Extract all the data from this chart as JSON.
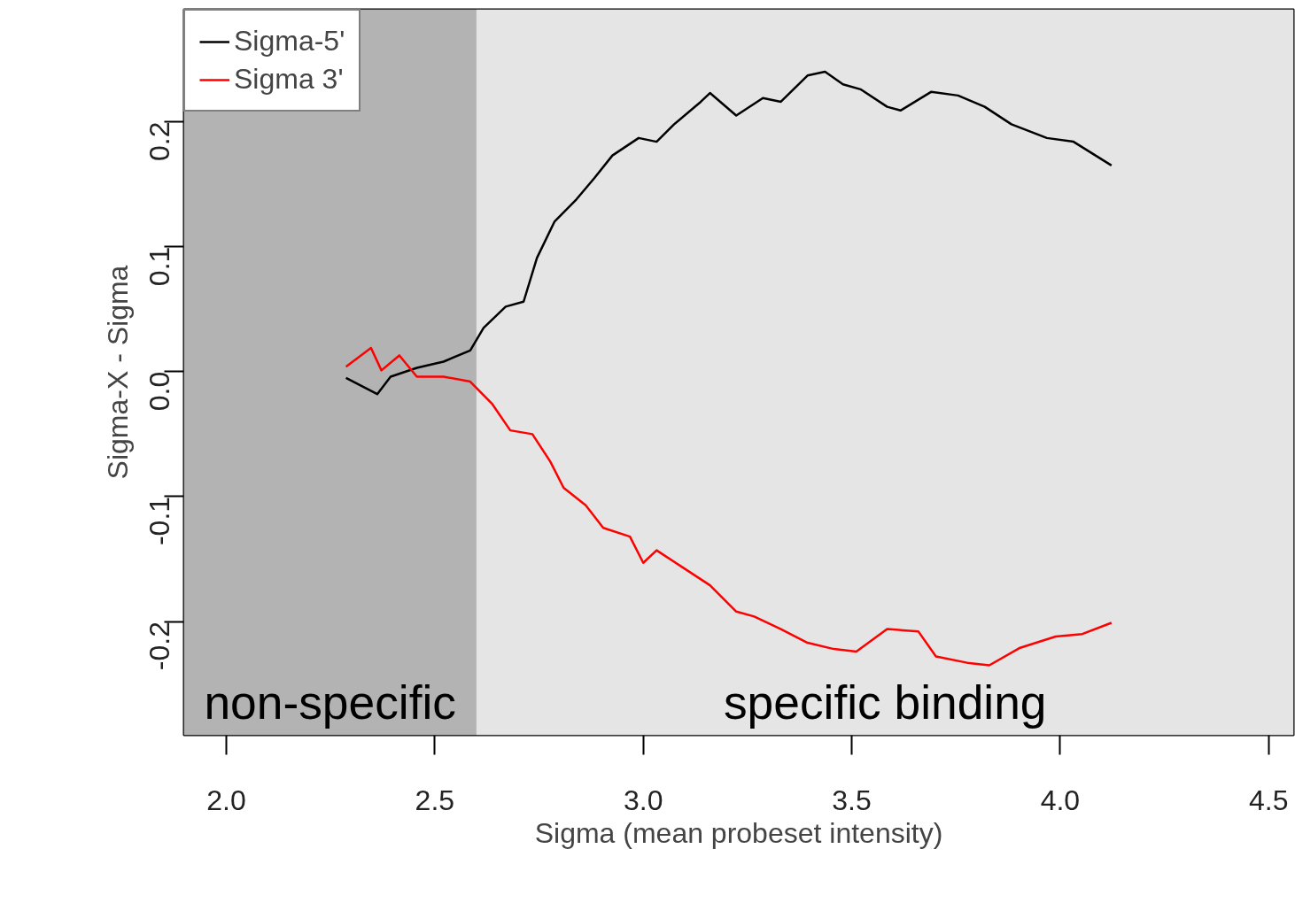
{
  "chart_data": {
    "type": "line",
    "xlabel": "Sigma (mean probeset intensity)",
    "ylabel": "Sigma-X - Sigma",
    "xlim": [
      1.898,
      4.56
    ],
    "ylim": [
      -0.291,
      0.29
    ],
    "xticks": [
      {
        "value": 2.0,
        "label": "2.0"
      },
      {
        "value": 2.5,
        "label": "2.5"
      },
      {
        "value": 3.0,
        "label": "3.0"
      },
      {
        "value": 3.5,
        "label": "3.5"
      },
      {
        "value": 4.0,
        "label": "4.0"
      },
      {
        "value": 4.5,
        "label": "4.5"
      }
    ],
    "yticks": [
      {
        "value": -0.2,
        "label": "-0.2"
      },
      {
        "value": -0.1,
        "label": "-0.1"
      },
      {
        "value": 0.0,
        "label": "0.0"
      },
      {
        "value": 0.1,
        "label": "0.1"
      },
      {
        "value": 0.2,
        "label": "0.2"
      }
    ],
    "grid": true,
    "legend": "top left",
    "line_style": "solid",
    "bands": [
      {
        "axis": "x",
        "from": 1.898,
        "to": 2.6,
        "label": "non-specific",
        "color": "#b3b3b3"
      },
      {
        "axis": "x",
        "from": 2.6,
        "to": 4.56,
        "label": "specific binding",
        "color": "#e5e5e5"
      }
    ],
    "series": [
      {
        "name": "Sigma-5'",
        "color": "#000000",
        "x": [
          2.287,
          2.362,
          2.394,
          2.457,
          2.521,
          2.585,
          2.617,
          2.67,
          2.713,
          2.745,
          2.787,
          2.84,
          2.883,
          2.926,
          2.989,
          3.032,
          3.074,
          3.138,
          3.16,
          3.223,
          3.287,
          3.33,
          3.394,
          3.436,
          3.479,
          3.521,
          3.585,
          3.617,
          3.691,
          3.755,
          3.819,
          3.883,
          3.968,
          4.032,
          4.123
        ],
        "values": [
          -0.005,
          -0.018,
          -0.004,
          0.003,
          0.008,
          0.017,
          0.035,
          0.052,
          0.056,
          0.091,
          0.12,
          0.138,
          0.155,
          0.173,
          0.187,
          0.184,
          0.198,
          0.216,
          0.223,
          0.205,
          0.219,
          0.216,
          0.237,
          0.24,
          0.23,
          0.226,
          0.212,
          0.209,
          0.224,
          0.221,
          0.212,
          0.198,
          0.187,
          0.184,
          0.165
        ]
      },
      {
        "name": "Sigma 3'",
        "color": "#ff0000",
        "x": [
          2.287,
          2.347,
          2.372,
          2.415,
          2.457,
          2.521,
          2.585,
          2.638,
          2.681,
          2.734,
          2.777,
          2.809,
          2.862,
          2.904,
          2.968,
          3.0,
          3.032,
          3.096,
          3.16,
          3.223,
          3.266,
          3.33,
          3.394,
          3.457,
          3.511,
          3.585,
          3.66,
          3.702,
          3.777,
          3.83,
          3.904,
          3.989,
          4.053,
          4.123
        ],
        "values": [
          0.004,
          0.019,
          0.001,
          0.013,
          -0.004,
          -0.004,
          -0.008,
          -0.026,
          -0.047,
          -0.05,
          -0.072,
          -0.093,
          -0.107,
          -0.125,
          -0.132,
          -0.153,
          -0.143,
          -0.157,
          -0.171,
          -0.192,
          -0.196,
          -0.206,
          -0.217,
          -0.222,
          -0.224,
          -0.206,
          -0.208,
          -0.228,
          -0.233,
          -0.235,
          -0.221,
          -0.212,
          -0.21,
          -0.201
        ]
      }
    ]
  }
}
